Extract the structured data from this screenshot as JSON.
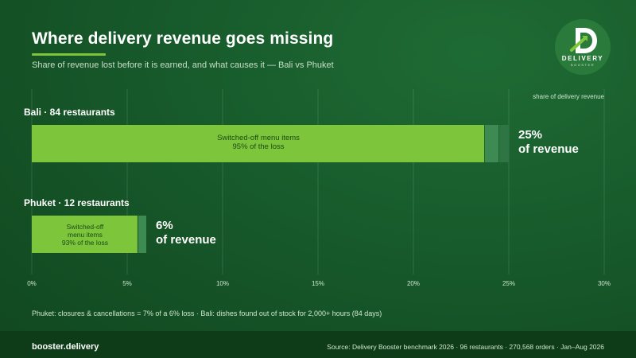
{
  "header": {
    "title": "Where delivery revenue goes missing",
    "subtitle": "Share of revenue lost before it is earned, and what causes it — Bali vs Phuket"
  },
  "logo": {
    "name": "DELIVERY",
    "tagline": "BOOSTER",
    "icon": "d-arrow-logo-icon"
  },
  "colors": {
    "primary_segment": "#7dc63c",
    "secondary_segment": "#3d8a52",
    "tertiary_segment": "#2f7443",
    "background": "#175a2b",
    "footer": "#0e3b18"
  },
  "chart_data": {
    "type": "bar",
    "orientation": "horizontal",
    "stacked": true,
    "axis_note": "share of delivery revenue",
    "xlim": [
      0,
      30
    ],
    "xticks": [
      0,
      5,
      10,
      15,
      20,
      25,
      30
    ],
    "xtick_labels": [
      "0%",
      "5%",
      "10%",
      "15%",
      "20%",
      "25%",
      "30%"
    ],
    "grid": true,
    "rows": [
      {
        "label": "Bali · 84 restaurants",
        "total": 25,
        "total_label": "25%",
        "total_caption": "of revenue",
        "segments": [
          {
            "value": 23.75,
            "color": "#7dc63c",
            "text_line1": "Switched-off menu items",
            "text_line2": "95% of the loss"
          },
          {
            "value": 0.75,
            "color": "#3d8a52"
          },
          {
            "value": 0.5,
            "color": "#2f7443"
          }
        ]
      },
      {
        "label": "Phuket · 12 restaurants",
        "total": 6,
        "total_label": "6%",
        "total_caption": "of revenue",
        "segments": [
          {
            "value": 5.58,
            "color": "#7dc63c",
            "text_line1": "Switched-off",
            "text_line2": "menu items",
            "text_line3": "93% of the loss"
          },
          {
            "value": 0.42,
            "color": "#3d8a52"
          }
        ]
      }
    ]
  },
  "footnote": "Phuket: closures & cancellations = 7% of a 6% loss · Bali: dishes found out of stock for 2,000+ hours (84 days)",
  "footer": {
    "brand": "booster.delivery",
    "source": "Source: Delivery Booster benchmark 2026 · 96 restaurants · 270,568 orders · Jan–Aug 2026"
  }
}
